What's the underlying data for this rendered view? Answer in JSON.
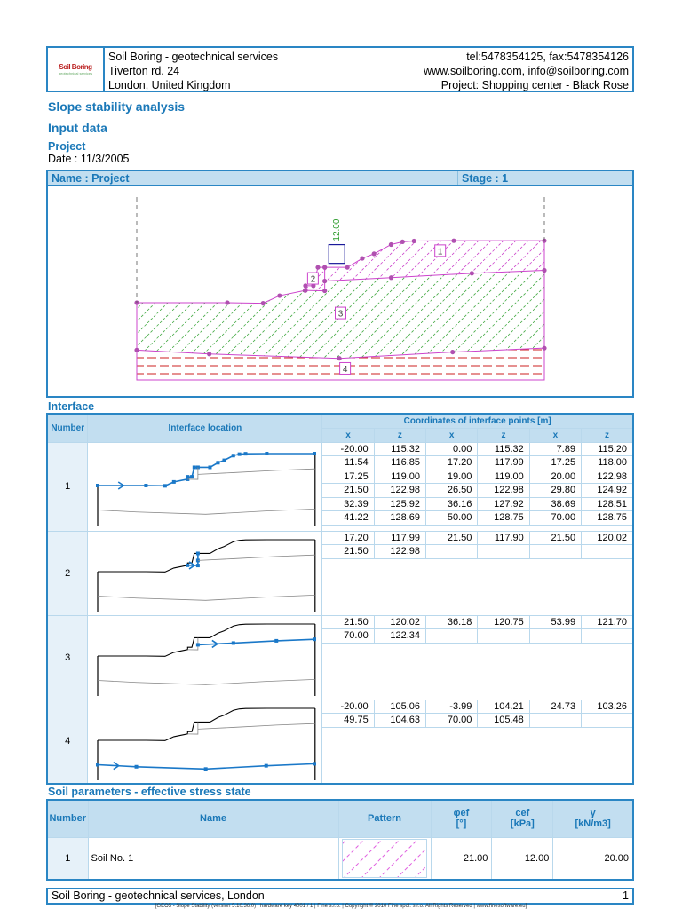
{
  "header": {
    "company": "Soil Boring - geotechnical services",
    "address": "Tiverton rd. 24",
    "city": "London, United Kingdom",
    "contact": "tel:5478354125, fax:5478354126",
    "web": "www.soilboring.com, info@soilboring.com",
    "project": "Project: Shopping center - Black Rose",
    "logo_text": "Soil Boring"
  },
  "title": "Slope stability analysis",
  "subtitle": "Input data",
  "section_project": "Project",
  "date": "Date :  11/3/2005",
  "name_bar": {
    "name": "Name : Project",
    "stage": "Stage : 1"
  },
  "figure": {
    "load_label": "12.00",
    "region_labels": [
      "1",
      "2",
      "3",
      "4"
    ],
    "colors": {
      "soil1": "#cc44cc",
      "soil3": "#44aa44",
      "soil4": "#cc2222",
      "load": "#1a1a9a",
      "load_label": "#2a9a2a",
      "points": "#b050b0"
    }
  },
  "interface": {
    "heading": "Interface",
    "col_number": "Number",
    "col_location": "Interface location",
    "col_coords": "Coordinates of interface points [m]",
    "col_x": "x",
    "col_z": "z",
    "rows": [
      {
        "number": "1",
        "points": [
          [
            "-20.00",
            "115.32"
          ],
          [
            "0.00",
            "115.32"
          ],
          [
            "7.89",
            "115.20"
          ],
          [
            "11.54",
            "116.85"
          ],
          [
            "17.20",
            "117.99"
          ],
          [
            "17.25",
            "118.00"
          ],
          [
            "17.25",
            "119.00"
          ],
          [
            "19.00",
            "119.00"
          ],
          [
            "20.00",
            "122.98"
          ],
          [
            "21.50",
            "122.98"
          ],
          [
            "26.50",
            "122.98"
          ],
          [
            "29.80",
            "124.92"
          ],
          [
            "32.39",
            "125.92"
          ],
          [
            "36.16",
            "127.92"
          ],
          [
            "38.69",
            "128.51"
          ],
          [
            "41.22",
            "128.69"
          ],
          [
            "50.00",
            "128.75"
          ],
          [
            "70.00",
            "128.75"
          ]
        ]
      },
      {
        "number": "2",
        "points": [
          [
            "17.20",
            "117.99"
          ],
          [
            "21.50",
            "117.90"
          ],
          [
            "21.50",
            "120.02"
          ],
          [
            "21.50",
            "122.98"
          ]
        ]
      },
      {
        "number": "3",
        "points": [
          [
            "21.50",
            "120.02"
          ],
          [
            "36.18",
            "120.75"
          ],
          [
            "53.99",
            "121.70"
          ],
          [
            "70.00",
            "122.34"
          ]
        ]
      },
      {
        "number": "4",
        "points": [
          [
            "-20.00",
            "105.06"
          ],
          [
            "-3.99",
            "104.21"
          ],
          [
            "24.73",
            "103.26"
          ],
          [
            "49.75",
            "104.63"
          ],
          [
            "70.00",
            "105.48"
          ]
        ]
      }
    ]
  },
  "soil": {
    "heading": "Soil parameters - effective stress state",
    "col_number": "Number",
    "col_name": "Name",
    "col_pattern": "Pattern",
    "col_phi": "φef",
    "col_phi_unit": "[°]",
    "col_c": "cef",
    "col_c_unit": "[kPa]",
    "col_gamma": "γ",
    "col_gamma_unit": "[kN/m3]",
    "rows": [
      {
        "number": "1",
        "name": "Soil No. 1",
        "phi": "21.00",
        "c": "12.00",
        "gamma": "20.00"
      }
    ]
  },
  "footer": {
    "left": "Soil Boring - geotechnical services, London",
    "page": "1",
    "credits": "[GEO5 - Slope Stability (version 5.10.36.0) | hardware key 4001 / 1 | Fine s.r.o. | Copyright © 2010 Fine spol. s r.o. All Rights Reserved | www.finesoftware.eu]"
  }
}
